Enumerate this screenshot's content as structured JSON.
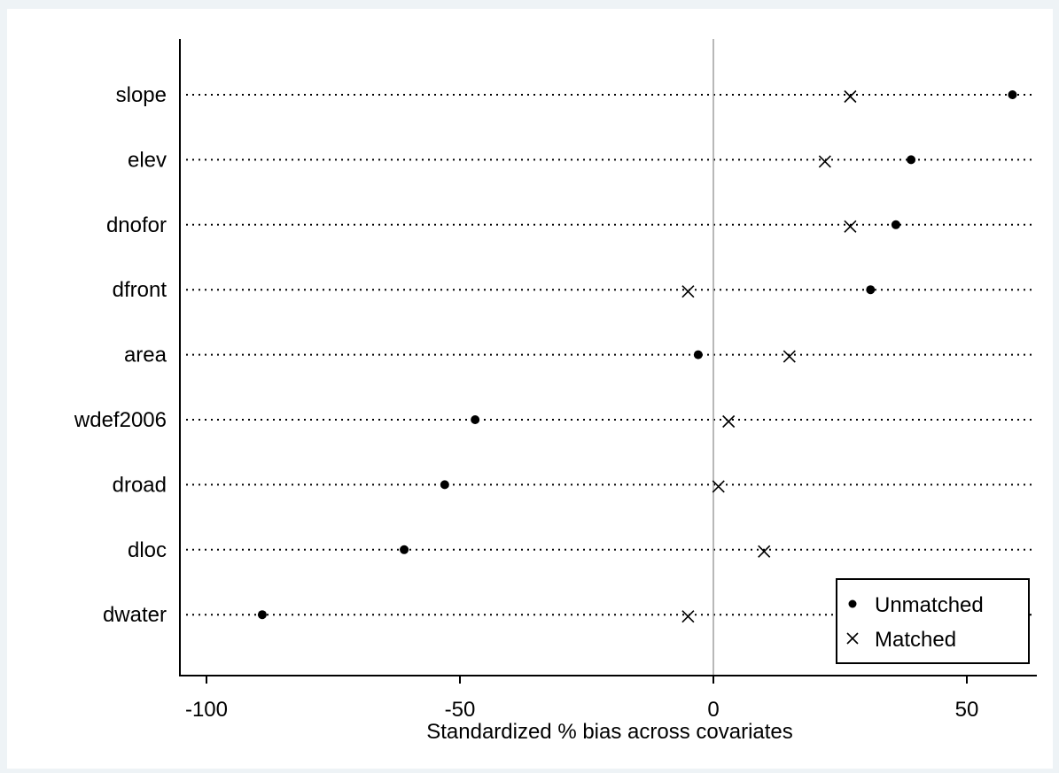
{
  "chart_data": {
    "type": "dot",
    "categories": [
      "slope",
      "elev",
      "dnofor",
      "dfront",
      "area",
      "wdef2006",
      "droad",
      "dloc",
      "dwater"
    ],
    "series": [
      {
        "name": "Unmatched",
        "marker": "dot",
        "values": [
          59,
          39,
          36,
          31,
          -3,
          -47,
          -53,
          -61,
          -89
        ]
      },
      {
        "name": "Matched",
        "marker": "x",
        "values": [
          27,
          22,
          27,
          -5,
          15,
          3,
          1,
          10,
          -5
        ]
      }
    ],
    "xlabel": "Standardized % bias across covariates",
    "xticks": [
      -100,
      -50,
      0,
      50
    ],
    "xlim": [
      -105,
      64
    ],
    "zero_line": true,
    "grid": "dotted horizontal lines per category",
    "legend_position": "bottom-right",
    "colors": {
      "marker": "#000000",
      "zero_line": "#a0a0a0",
      "axis": "#000000",
      "background": "#ffffff",
      "frame": "#eef3f6"
    }
  }
}
